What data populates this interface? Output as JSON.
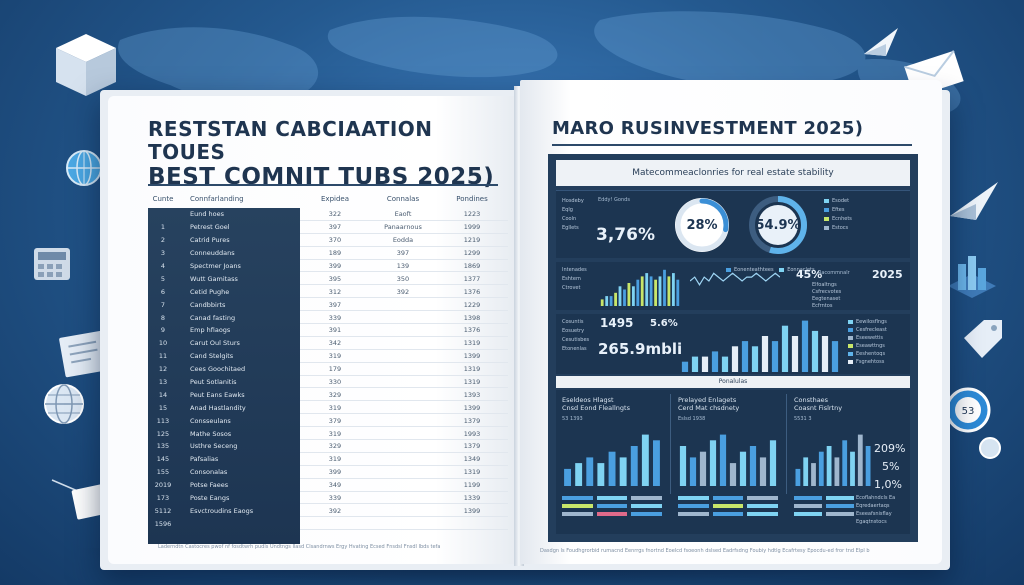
{
  "left_page": {
    "title_line1": "RESTSTAN CABCIAATION TOUES",
    "title_line2": "BEST COMNIT TUBS 2025)",
    "table": {
      "headers": [
        "Cunte",
        "Connfarlanding",
        "Expidea",
        "Connalas",
        "Pondines"
      ],
      "rows": [
        [
          "",
          "Eund hoes",
          "322",
          "Eaoft",
          "1223"
        ],
        [
          "1",
          "Petrest Goel",
          "397",
          "Panaarnous",
          "1999"
        ],
        [
          "2",
          "Catrid Pures",
          "370",
          "Eodda",
          "1219"
        ],
        [
          "3",
          "Conneuddans",
          "189",
          "397",
          "1299"
        ],
        [
          "4",
          "Spectmer Joans",
          "399",
          "139",
          "1869"
        ],
        [
          "5",
          "Wutt Gamitass",
          "395",
          "350",
          "1377"
        ],
        [
          "6",
          "Cetid Pughe",
          "312",
          "392",
          "1376"
        ],
        [
          "7",
          "Candbbirts",
          "397",
          "",
          "1229"
        ],
        [
          "8",
          "Canad fasting",
          "339",
          "",
          "1398"
        ],
        [
          "9",
          "Emp hfiaogs",
          "391",
          "",
          "1376"
        ],
        [
          "10",
          "Carut Oul Sturs",
          "342",
          "",
          "1319"
        ],
        [
          "11",
          "Cand Stelgits",
          "319",
          "",
          "1399"
        ],
        [
          "12",
          "Cees Goochitaed",
          "179",
          "",
          "1319"
        ],
        [
          "13",
          "Peut Sotlanitis",
          "330",
          "",
          "1319"
        ],
        [
          "14",
          "Peut Eans Eawks",
          "329",
          "",
          "1393"
        ],
        [
          "15",
          "Anad Hastlandity",
          "319",
          "",
          "1399"
        ],
        [
          "113",
          "Consseulans",
          "379",
          "",
          "1379"
        ],
        [
          "125",
          "Mathe Sosos",
          "319",
          "",
          "1993"
        ],
        [
          "135",
          "Usthre Seceng",
          "329",
          "",
          "1379"
        ],
        [
          "145",
          "Pafsalias",
          "319",
          "",
          "1349"
        ],
        [
          "155",
          "Consonalas",
          "399",
          "",
          "1319"
        ],
        [
          "2019",
          "Potse Faees",
          "349",
          "",
          "1199"
        ],
        [
          "173",
          "Poste Eangs",
          "339",
          "",
          "1339"
        ],
        [
          "5112",
          "Esvctroudins Eaogs",
          "392",
          "",
          "1399"
        ],
        [
          "1596",
          "",
          "",
          "",
          ""
        ]
      ]
    },
    "footer": "Laderndtn Castocres pwof nf fosdtwrh pudls Undtngs Ilasd Clsandrnws Ergy Hvating Ecsed Fnsdsl Fnsdl Ibds tefa"
  },
  "right_page": {
    "title": "MARO RUSINVESTMENT 2025)",
    "subhead": "Matecommeaclonries for real estate stability",
    "top_panel": {
      "side_labels": [
        "Hosdeby",
        "Eqlg",
        "Cooln",
        "Egllets"
      ],
      "metric_label": "Eddy! Gonds",
      "metric_value": "3,76%",
      "gauge1_value": "28%",
      "gauge1_fill": 0.28,
      "gauge2_value": "54.9%",
      "gauge2_fill": 0.549,
      "legend": [
        "Esodet",
        "Eftes",
        "Ecnhets",
        "Estocs"
      ]
    },
    "middle_panel": {
      "labels_left": [
        "Intenades",
        "Eshtem",
        "Ctrovet"
      ],
      "legend_mid": [
        "Eonenteathtees",
        "Eonnaclets"
      ],
      "kpi_a": "45%",
      "kpi_b": "2025",
      "kpi_c_label": "Racommnalr",
      "labels_right": [
        "Elfoaltngs",
        "Csfrecvotes",
        "Eegtenaset",
        "Ecfrntos"
      ]
    },
    "lower_left_panel": {
      "labels": [
        "Cosuntis",
        "Eosuetry",
        "Cesutisbes",
        "Etonenlas"
      ],
      "value1": "1495",
      "value2": "5.6%",
      "value3": "265.9mbli",
      "legend": [
        "Eewilosflngs",
        "Cesfrecleast",
        "Eseewettis",
        "Eseawttngs",
        "Eeshentoqs",
        "Fsgnehtoss"
      ]
    },
    "band_label": "Ponalulas",
    "bottom": {
      "panel1_title": [
        "Eseldeos Hlagst",
        "Cnsd Eond Fleallngts"
      ],
      "panel1_sub": "53 1393",
      "panel2_title": [
        "Prelayed Enlagets",
        "Cerd Mat chsdnety"
      ],
      "panel2_sub": "Eslsd 1938",
      "panel3_title": [
        "Consthaes",
        "Coasnt Fislrtny"
      ],
      "panel3_sub": "5531 3",
      "kpi_1": "209%",
      "kpi_2": "5%",
      "kpi_3": "1,0%",
      "legend_side": [
        "Ecoflahndcls Ea",
        "Eqredaertaqs",
        "Eseeafsnisflay",
        "Egaqtnstocs"
      ]
    },
    "footer": "Dasdgn ls Foudhgrorbid rumacnd Eenrrgs fnortnd Eoelcd fsoeonh dslsed Eadrfsdng Foubiy hdtlg Ecafrtesy Epocdu-ed fror tnd Elpl b"
  },
  "colors": {
    "background": "#24598f",
    "panel_dark": "#1c3551",
    "accent_blue": "#4a9fe0",
    "accent_cyan": "#7fd3f2",
    "accent_lime": "#c8e66a",
    "page": "#ffffff"
  },
  "chart_data": [
    {
      "type": "bar",
      "x": [
        1,
        2,
        3,
        4,
        5,
        6,
        7,
        8,
        9,
        10,
        11,
        12,
        13,
        14,
        15,
        16,
        17,
        18
      ],
      "series": [
        {
          "values": [
            2,
            3,
            3,
            4,
            6,
            5,
            7,
            6,
            8,
            9,
            10,
            9,
            8,
            9,
            11,
            9,
            10,
            8
          ]
        }
      ]
    },
    {
      "type": "line",
      "x": [
        1,
        2,
        3,
        4,
        5,
        6,
        7,
        8,
        9,
        10,
        11,
        12,
        13,
        14,
        15,
        16,
        17,
        18,
        19,
        20
      ],
      "series": [
        {
          "values": [
            5,
            6,
            4,
            6,
            5,
            7,
            6,
            5,
            6,
            7,
            6,
            5,
            6,
            6,
            7,
            6,
            5,
            6,
            7,
            6
          ]
        }
      ]
    },
    {
      "type": "bar",
      "x": [
        1,
        2,
        3,
        4,
        5,
        6,
        7,
        8,
        9,
        10,
        11,
        12,
        13,
        14,
        15,
        16
      ],
      "series": [
        {
          "values": [
            2,
            3,
            3,
            4,
            3,
            5,
            6,
            5,
            7,
            6,
            9,
            7,
            10,
            8,
            7,
            6
          ]
        }
      ]
    },
    {
      "type": "bar",
      "x": [
        1,
        2,
        3,
        4,
        5,
        6,
        7,
        8,
        9
      ],
      "series": [
        {
          "values": [
            3,
            4,
            5,
            4,
            6,
            5,
            7,
            9,
            8
          ]
        }
      ]
    },
    {
      "type": "bar",
      "x": [
        1,
        2,
        3,
        4,
        5,
        6,
        7,
        8,
        9,
        10
      ],
      "series": [
        {
          "values": [
            7,
            5,
            6,
            8,
            9,
            4,
            6,
            7,
            5,
            8
          ]
        }
      ]
    },
    {
      "type": "bar",
      "x": [
        1,
        2,
        3,
        4,
        5,
        6,
        7,
        8,
        9,
        10
      ],
      "series": [
        {
          "values": [
            3,
            5,
            4,
            6,
            7,
            5,
            8,
            6,
            9,
            7
          ]
        }
      ]
    }
  ]
}
